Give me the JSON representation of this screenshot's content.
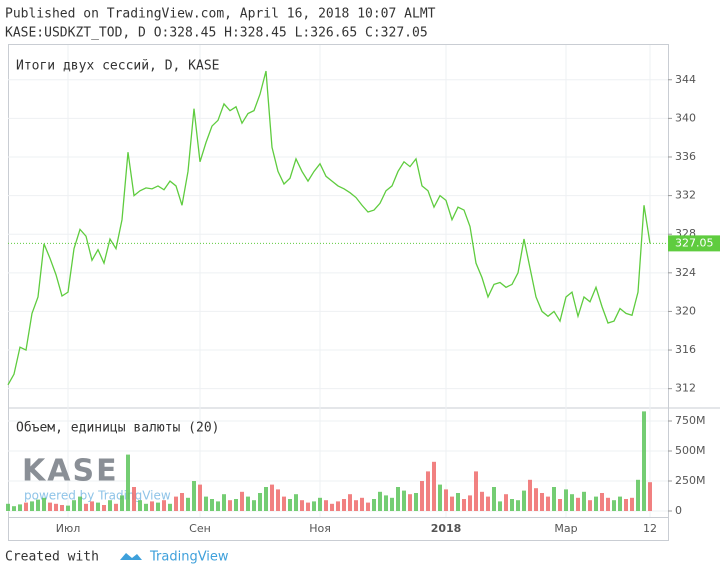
{
  "header": {
    "published": "Published on TradingView.com, April 16, 2018 10:07 ALMT",
    "symbol": "KASE:USDKZT_TOD, D O:328.45 H:328.45 L:326.65 C:327.05"
  },
  "watermark": {
    "logo": "KASE",
    "powered": "powered by TradingView"
  },
  "footer": {
    "created": "Created with",
    "brand": "TradingView"
  },
  "chart_data": [
    {
      "type": "line",
      "title": "Итоги двух сессий, D, KASE",
      "color": "#5fcc3f",
      "grid": true,
      "categories": [
        null,
        null,
        null,
        null,
        null,
        null,
        null,
        null,
        null,
        null,
        "Июл",
        null,
        null,
        null,
        null,
        null,
        null,
        null,
        null,
        null,
        null,
        null,
        null,
        null,
        null,
        null,
        null,
        null,
        null,
        null,
        null,
        null,
        "Сен",
        null,
        null,
        null,
        null,
        null,
        null,
        null,
        null,
        null,
        null,
        null,
        null,
        null,
        null,
        null,
        null,
        null,
        null,
        null,
        "Ноя",
        null,
        null,
        null,
        null,
        null,
        null,
        null,
        null,
        null,
        null,
        null,
        null,
        null,
        null,
        null,
        null,
        null,
        null,
        null,
        null,
        "2018",
        null,
        null,
        null,
        null,
        null,
        null,
        null,
        null,
        null,
        null,
        null,
        null,
        null,
        null,
        null,
        null,
        null,
        null,
        null,
        "Мар",
        null,
        null,
        null,
        null,
        null,
        null,
        null,
        null,
        null,
        null,
        null,
        null,
        null,
        "12"
      ],
      "values": [
        312.4,
        313.5,
        316.3,
        316.0,
        319.8,
        321.5,
        327.0,
        325.5,
        323.8,
        321.6,
        322.0,
        326.5,
        328.5,
        327.8,
        325.3,
        326.4,
        325.0,
        327.5,
        326.5,
        329.5,
        336.5,
        332.0,
        332.5,
        332.8,
        332.7,
        333.0,
        332.6,
        333.5,
        333.0,
        331.0,
        334.5,
        341.0,
        335.5,
        337.5,
        339.2,
        339.8,
        341.5,
        340.8,
        341.2,
        339.5,
        340.5,
        340.8,
        342.5,
        344.9,
        337.0,
        334.5,
        333.2,
        333.8,
        335.8,
        334.5,
        333.5,
        334.5,
        335.3,
        334.0,
        333.5,
        333.0,
        332.7,
        332.3,
        331.8,
        331.0,
        330.3,
        330.5,
        331.2,
        332.5,
        333.0,
        334.5,
        335.5,
        335.0,
        335.8,
        333.0,
        332.5,
        330.8,
        332.0,
        331.5,
        329.5,
        330.8,
        330.5,
        328.8,
        325.0,
        323.5,
        321.5,
        322.8,
        323.0,
        322.5,
        322.8,
        324.0,
        327.5,
        324.5,
        321.5,
        320.0,
        319.5,
        320.0,
        319.0,
        321.5,
        322.0,
        319.5,
        321.5,
        321.0,
        322.5,
        320.5,
        318.8,
        319.0,
        320.3,
        319.8,
        319.6,
        322.0,
        331.0,
        327.05
      ],
      "ylim": [
        310.1,
        347.6
      ],
      "yticks": [
        312,
        316,
        320,
        324,
        328,
        332,
        336,
        340,
        344
      ]
    },
    {
      "type": "bar",
      "title": "Объем, единицы валюты (20)",
      "up_color": "#5cc45a",
      "down_color": "#ef6b6b",
      "grid": true,
      "values": [
        60,
        40,
        55,
        70,
        80,
        95,
        110,
        70,
        60,
        50,
        45,
        90,
        120,
        60,
        80,
        70,
        50,
        90,
        60,
        130,
        470,
        200,
        90,
        60,
        80,
        70,
        90,
        60,
        120,
        150,
        110,
        250,
        220,
        120,
        100,
        80,
        140,
        90,
        100,
        160,
        120,
        90,
        150,
        200,
        220,
        180,
        120,
        100,
        140,
        90,
        70,
        80,
        110,
        90,
        60,
        80,
        100,
        140,
        90,
        110,
        70,
        100,
        160,
        130,
        110,
        200,
        170,
        140,
        150,
        250,
        330,
        410,
        220,
        180,
        120,
        150,
        100,
        130,
        330,
        160,
        120,
        200,
        80,
        140,
        100,
        90,
        170,
        260,
        190,
        150,
        120,
        200,
        100,
        180,
        140,
        110,
        160,
        90,
        120,
        150,
        110,
        90,
        120,
        100,
        110,
        260,
        830,
        240
      ],
      "ylim": [
        -50,
        850
      ],
      "yticks": [
        0,
        {
          "value": 250,
          "label": "250M"
        },
        {
          "value": 500,
          "label": "500M"
        },
        {
          "value": 750,
          "label": "750M"
        }
      ]
    }
  ]
}
